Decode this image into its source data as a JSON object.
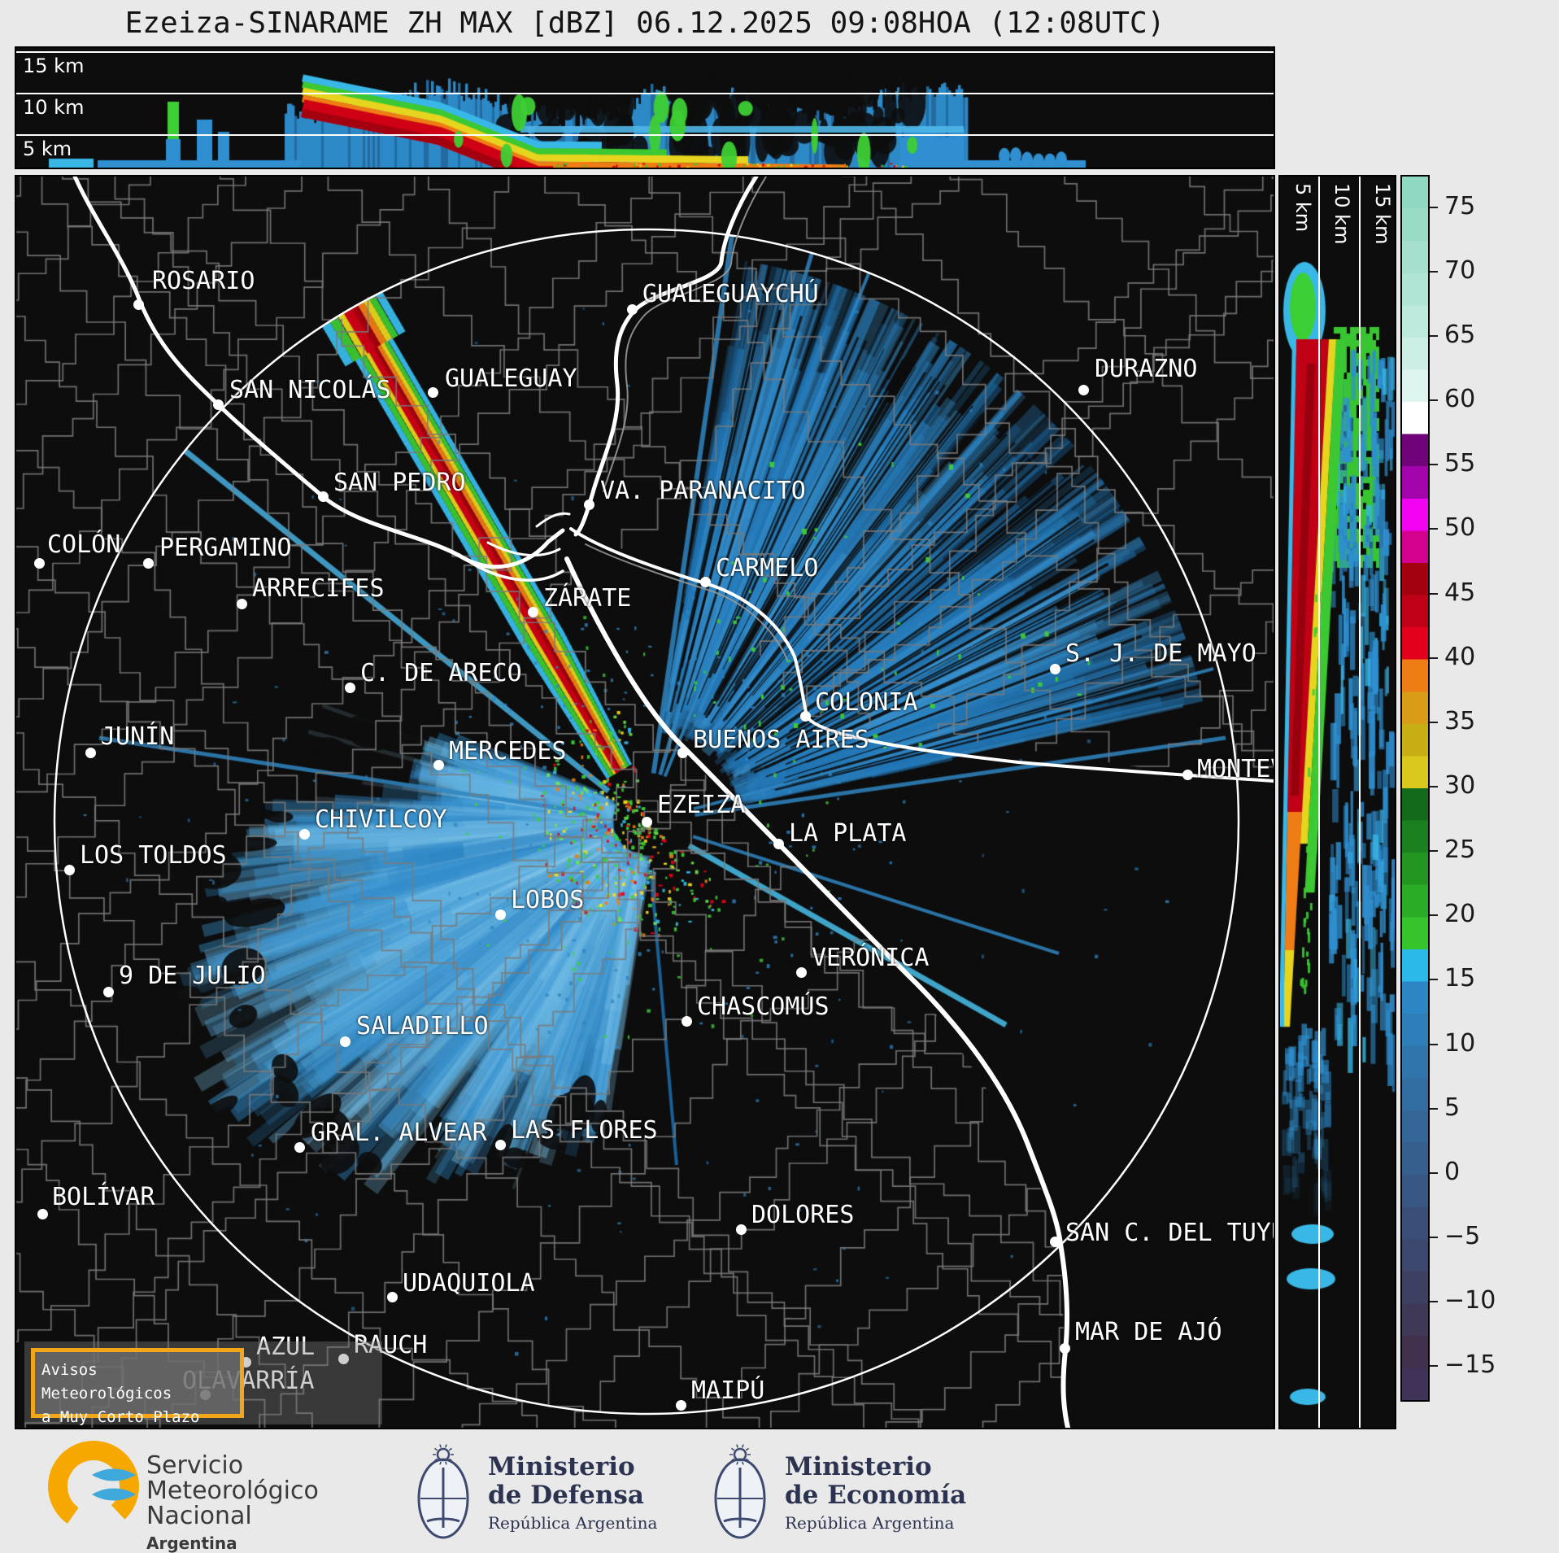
{
  "title": "Ezeiza-SINARAME ZH MAX [dBZ] 06.12.2025 09:08HOA (12:08UTC)",
  "top_profile": {
    "height_labels": [
      "15 km",
      "10 km",
      "5 km"
    ]
  },
  "right_profile": {
    "height_labels": [
      "5 km",
      "10 km",
      "15 km"
    ]
  },
  "colorbar": {
    "unit": "dBZ",
    "tick_values": [
      75,
      70,
      65,
      60,
      55,
      50,
      45,
      40,
      35,
      30,
      25,
      20,
      15,
      10,
      5,
      0,
      -5,
      -10,
      -15
    ],
    "band_colors": [
      "#8fd9c2",
      "#98dcc6",
      "#a4e0cd",
      "#b0e5d5",
      "#bdeadd",
      "#cceee4",
      "#def4ee",
      "#ffffff",
      "#70027a",
      "#a303ab",
      "#f203f2",
      "#d4018f",
      "#a30010",
      "#c00016",
      "#e2001d",
      "#ee7d15",
      "#d89c16",
      "#c8ae15",
      "#d8c91c",
      "#136a1a",
      "#1b801e",
      "#239622",
      "#2bac27",
      "#36c42d",
      "#2ab9e8",
      "#2c86c3",
      "#2e7eb8",
      "#3076ad",
      "#326ea2",
      "#346697",
      "#365f8d",
      "#385782",
      "#3a4f77",
      "#3c486d",
      "#3e4062",
      "#3f3957",
      "#41314d",
      "#3f3358"
    ]
  },
  "map": {
    "cities": [
      {
        "name": "ROSARIO",
        "dot": [
          168,
          372
        ],
        "label": [
          185,
          326
        ]
      },
      {
        "name": "GUALEGUAYCHÚ",
        "dot": [
          775,
          378
        ],
        "label": [
          788,
          342
        ]
      },
      {
        "name": "GUALEGUAY",
        "dot": [
          530,
          480
        ],
        "label": [
          545,
          446
        ]
      },
      {
        "name": "SAN NICOLÁS",
        "dot": [
          266,
          495
        ],
        "label": [
          280,
          460
        ]
      },
      {
        "name": "SAN PEDRO",
        "dot": [
          395,
          608
        ],
        "label": [
          408,
          574
        ]
      },
      {
        "name": "DURAZNO",
        "dot": [
          1330,
          477
        ],
        "label": [
          1344,
          434
        ]
      },
      {
        "name": "VA. PARANACITO",
        "dot": [
          722,
          618
        ],
        "label": [
          736,
          584
        ]
      },
      {
        "name": "COLÓN",
        "dot": [
          46,
          690
        ],
        "label": [
          56,
          650
        ]
      },
      {
        "name": "PERGAMINO",
        "dot": [
          180,
          690
        ],
        "label": [
          194,
          654
        ]
      },
      {
        "name": "ARRECIFES",
        "dot": [
          295,
          740
        ],
        "label": [
          308,
          704
        ]
      },
      {
        "name": "CARMELO",
        "dot": [
          865,
          713
        ],
        "label": [
          878,
          679
        ]
      },
      {
        "name": "ZÁRATE",
        "dot": [
          653,
          750
        ],
        "label": [
          666,
          716
        ]
      },
      {
        "name": "C. DE ARECO",
        "dot": [
          428,
          843
        ],
        "label": [
          441,
          808
        ]
      },
      {
        "name": "S. J. DE MAYO",
        "dot": [
          1295,
          820
        ],
        "label": [
          1308,
          784
        ]
      },
      {
        "name": "COLONIA",
        "dot": [
          988,
          878
        ],
        "label": [
          1000,
          844
        ]
      },
      {
        "name": "JUNÍN",
        "dot": [
          109,
          923
        ],
        "label": [
          122,
          886
        ]
      },
      {
        "name": "MERCEDES",
        "dot": [
          537,
          938
        ],
        "label": [
          550,
          904
        ]
      },
      {
        "name": "BUENOS AIRES",
        "dot": [
          837,
          923
        ],
        "label": [
          850,
          890
        ]
      },
      {
        "name": "EZEIZA",
        "dot": [
          793,
          1008
        ],
        "label": [
          806,
          970
        ]
      },
      {
        "name": "CHIVILCOY",
        "dot": [
          372,
          1023
        ],
        "label": [
          385,
          988
        ]
      },
      {
        "name": "LA PLATA",
        "dot": [
          955,
          1035
        ],
        "label": [
          968,
          1005
        ]
      },
      {
        "name": "MONTEVIDEO",
        "dot": [
          1458,
          950
        ],
        "label": [
          1470,
          926
        ]
      },
      {
        "name": "LOS TOLDOS",
        "dot": [
          83,
          1067
        ],
        "label": [
          96,
          1032
        ]
      },
      {
        "name": "LOBOS",
        "dot": [
          613,
          1122
        ],
        "label": [
          626,
          1087
        ]
      },
      {
        "name": "VERÓNICA",
        "dot": [
          983,
          1193
        ],
        "label": [
          996,
          1158
        ]
      },
      {
        "name": "9 DE JULIO",
        "dot": [
          131,
          1217
        ],
        "label": [
          144,
          1180
        ]
      },
      {
        "name": "CHASCOMÚS",
        "dot": [
          842,
          1253
        ],
        "label": [
          855,
          1218
        ]
      },
      {
        "name": "SALADILLO",
        "dot": [
          422,
          1278
        ],
        "label": [
          436,
          1242
        ]
      },
      {
        "name": "GRAL. ALVEAR",
        "dot": [
          366,
          1408
        ],
        "label": [
          380,
          1373
        ]
      },
      {
        "name": "LAS FLORES",
        "dot": [
          613,
          1405
        ],
        "label": [
          626,
          1370
        ]
      },
      {
        "name": "BOLÍVAR",
        "dot": [
          50,
          1490
        ],
        "label": [
          62,
          1452
        ]
      },
      {
        "name": "DOLORES",
        "dot": [
          909,
          1509
        ],
        "label": [
          922,
          1474
        ]
      },
      {
        "name": "SAN C. DEL TUYÚ",
        "dot": [
          1295,
          1524
        ],
        "label": [
          1308,
          1496
        ]
      },
      {
        "name": "UDAQUIOLA",
        "dot": [
          480,
          1592
        ],
        "label": [
          493,
          1558
        ]
      },
      {
        "name": "MAR DE AJÓ",
        "dot": [
          1307,
          1655
        ],
        "label": [
          1320,
          1618
        ]
      },
      {
        "name": "AZUL",
        "dot": [
          300,
          1672
        ],
        "label": [
          313,
          1636
        ]
      },
      {
        "name": "RAUCH",
        "dot": [
          420,
          1668
        ],
        "label": [
          433,
          1634
        ]
      },
      {
        "name": "OLAVARRÍA",
        "dot": [
          250,
          1712
        ],
        "label": [
          222,
          1678
        ]
      },
      {
        "name": "MAIPÚ",
        "dot": [
          835,
          1725
        ],
        "label": [
          848,
          1690
        ]
      }
    ],
    "advisory_box": {
      "line1": "Avisos Meteorológicos",
      "line2": "a Muy Corto Plazo",
      "border_color": "#f2a71b"
    }
  },
  "footer": {
    "smn": {
      "l1": "Servicio",
      "l2": "Meteorológico",
      "l3": "Nacional",
      "country": "Argentina",
      "logo_orange": "#f7a800",
      "logo_blue": "#3fa9dc"
    },
    "ministries": [
      {
        "l1": "Ministerio",
        "l2": "de Defensa",
        "sub": "República Argentina"
      },
      {
        "l1": "Ministerio",
        "l2": "de Economía",
        "sub": "República Argentina"
      }
    ]
  },
  "colors": {
    "background": "#e9e9e9",
    "panel_black": "#0d0d0d",
    "grid_white": "#ffffff",
    "boundary_gray": "#787878",
    "echo_blue": "#2f8fd0",
    "echo_red": "#c00014"
  }
}
